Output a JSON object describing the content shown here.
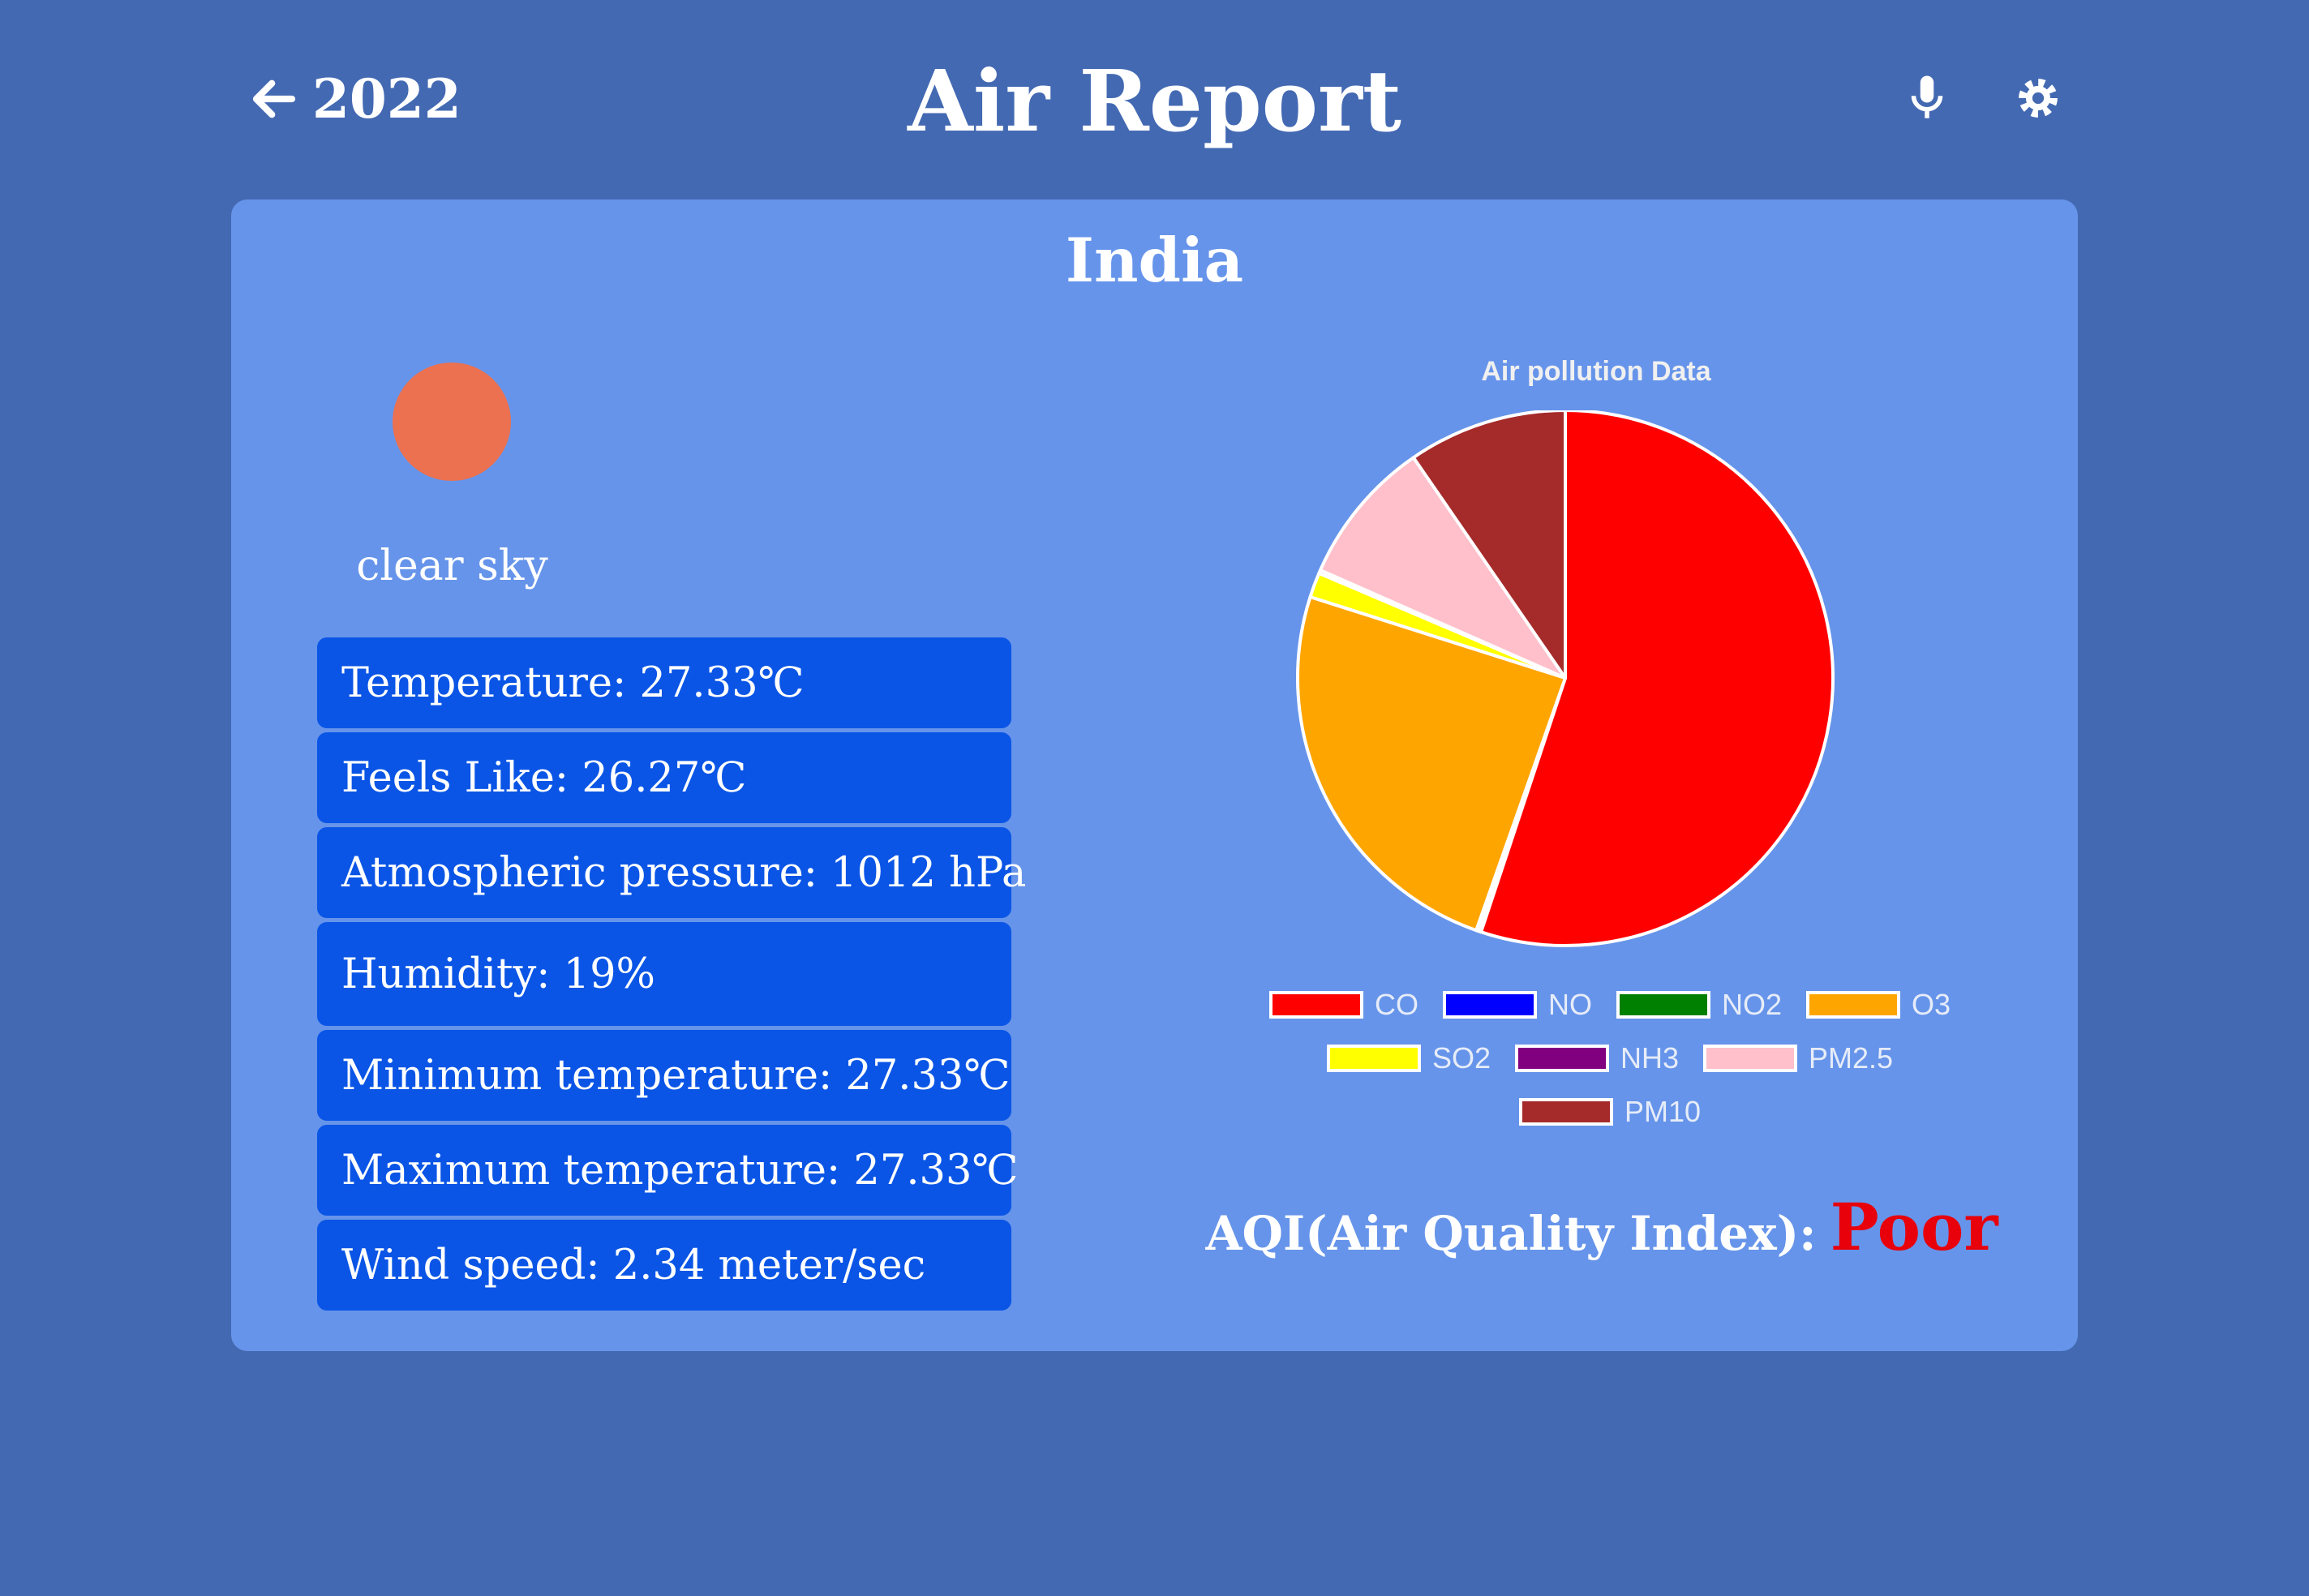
{
  "header": {
    "back_icon": "arrow-left-icon",
    "year": "2022",
    "title": "Air Report",
    "mic_icon": "microphone-icon",
    "settings_icon": "gear-icon"
  },
  "card": {
    "country": "India",
    "weather": {
      "icon": "sun-icon",
      "icon_color": "#ec7150",
      "description": "clear sky"
    },
    "stats": [
      "Temperature: 27.33℃",
      "Feels Like: 26.27℃",
      "Atmospheric pressure: 1012 hPa",
      "Humidity: 19%",
      "Minimum temperature: 27.33℃",
      "Maximum temperature: 27.33℃",
      "Wind speed: 2.34 meter/sec"
    ],
    "aqi": {
      "label": "AQI(Air Quality Index):",
      "value": "Poor",
      "value_color": "#e8000b"
    }
  },
  "colors": {
    "background": "#4369b2",
    "card": "#6694ea",
    "stat_box": "#0a55e6"
  },
  "chart_data": {
    "type": "pie",
    "title": "Air pollution Data",
    "legend_position": "bottom",
    "categories": [
      "CO",
      "NO",
      "NO2",
      "O3",
      "SO2",
      "NH3",
      "PM2.5",
      "PM10"
    ],
    "colors": [
      "#ff0000",
      "#0000ff",
      "#008000",
      "#ffa500",
      "#ffff00",
      "#800080",
      "#ffc0cb",
      "#a52a2a"
    ],
    "values": [
      55.1,
      0.1,
      0.2,
      24.5,
      1.5,
      0.2,
      8.8,
      9.6
    ]
  }
}
